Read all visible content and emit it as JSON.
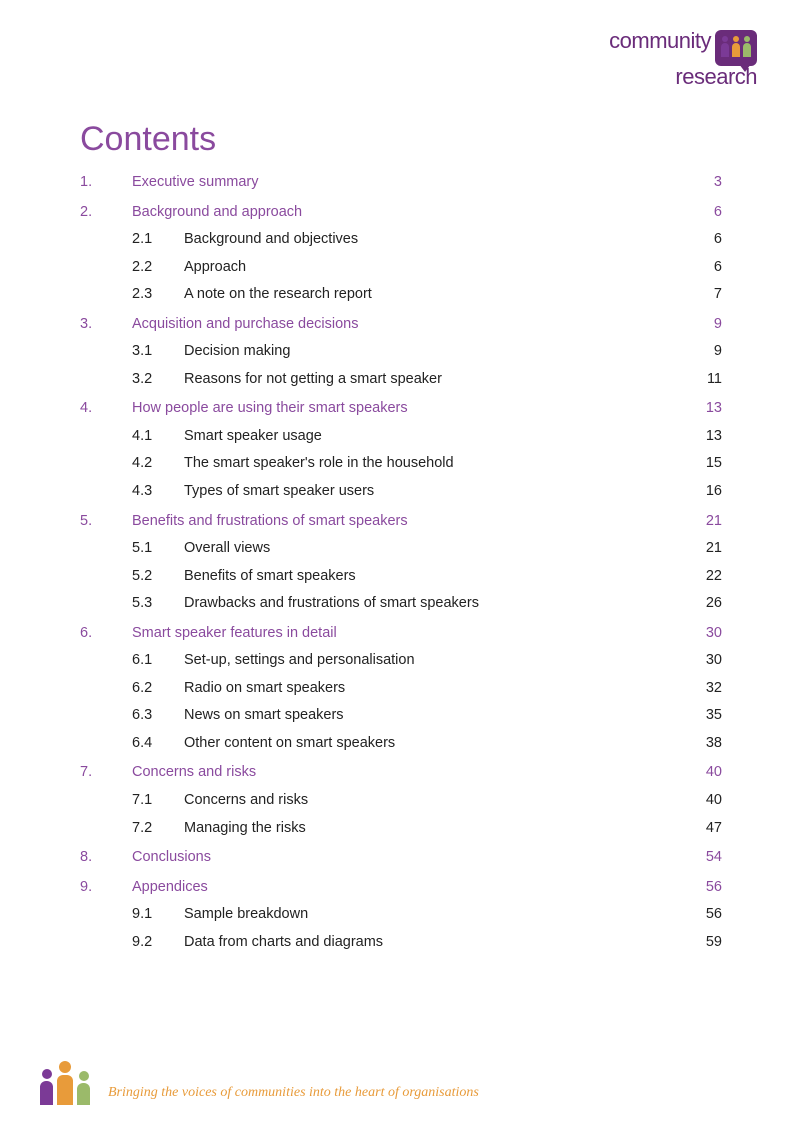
{
  "brand": {
    "line1": "community",
    "line2": "research",
    "icon_colors": [
      "#7b3a96",
      "#e89b3a",
      "#9bba6a"
    ],
    "badge_bg": "#6a2c7a"
  },
  "title": "Contents",
  "colors": {
    "heading": "#8a4a9e",
    "body": "#222222",
    "tagline": "#e89b3a"
  },
  "toc": [
    {
      "num": "1.",
      "label": "Executive summary",
      "page": "3",
      "subs": []
    },
    {
      "num": "2.",
      "label": "Background and approach",
      "page": "6",
      "subs": [
        {
          "num": "2.1",
          "label": "Background and objectives",
          "page": "6"
        },
        {
          "num": "2.2",
          "label": "Approach",
          "page": "6"
        },
        {
          "num": "2.3",
          "label": "A note on the research report",
          "page": "7"
        }
      ]
    },
    {
      "num": "3.",
      "label": "Acquisition and purchase decisions",
      "page": "9",
      "subs": [
        {
          "num": "3.1",
          "label": "Decision making",
          "page": "9"
        },
        {
          "num": "3.2",
          "label": "Reasons for not getting a smart speaker",
          "page": "11"
        }
      ]
    },
    {
      "num": "4.",
      "label": "How people are using their smart speakers",
      "page": "13",
      "subs": [
        {
          "num": "4.1",
          "label": "Smart speaker usage",
          "page": "13"
        },
        {
          "num": "4.2",
          "label": "The smart speaker's role in the household",
          "page": "15"
        },
        {
          "num": "4.3",
          "label": "Types of smart speaker users",
          "page": "16"
        }
      ]
    },
    {
      "num": "5.",
      "label": "Benefits and frustrations of smart speakers",
      "page": "21",
      "subs": [
        {
          "num": "5.1",
          "label": "Overall views",
          "page": "21"
        },
        {
          "num": "5.2",
          "label": "Benefits of smart speakers",
          "page": "22"
        },
        {
          "num": "5.3",
          "label": "Drawbacks and frustrations of smart speakers",
          "page": "26"
        }
      ]
    },
    {
      "num": "6.",
      "label": "Smart speaker features in detail",
      "page": "30",
      "subs": [
        {
          "num": "6.1",
          "label": "Set-up, settings and personalisation",
          "page": "30"
        },
        {
          "num": "6.2",
          "label": "Radio on smart speakers",
          "page": "32"
        },
        {
          "num": "6.3",
          "label": "News on smart speakers",
          "page": "35"
        },
        {
          "num": "6.4",
          "label": "Other content on smart speakers",
          "page": "38"
        }
      ]
    },
    {
      "num": "7.",
      "label": "Concerns and risks",
      "page": "40",
      "subs": [
        {
          "num": "7.1",
          "label": "Concerns and risks",
          "page": "40"
        },
        {
          "num": "7.2",
          "label": "Managing the risks",
          "page": "47"
        }
      ]
    },
    {
      "num": "8.",
      "label": "Conclusions",
      "page": "54",
      "subs": []
    },
    {
      "num": "9.",
      "label": "Appendices",
      "page": "56",
      "subs": [
        {
          "num": "9.1",
          "label": "Sample breakdown",
          "page": "56"
        },
        {
          "num": "9.2",
          "label": "Data from charts and diagrams",
          "page": "59"
        }
      ]
    }
  ],
  "footer": {
    "tagline": "Bringing the voices of communities into the heart of organisations",
    "icon_colors": [
      "#7b3a96",
      "#e89b3a",
      "#9bba6a"
    ]
  }
}
